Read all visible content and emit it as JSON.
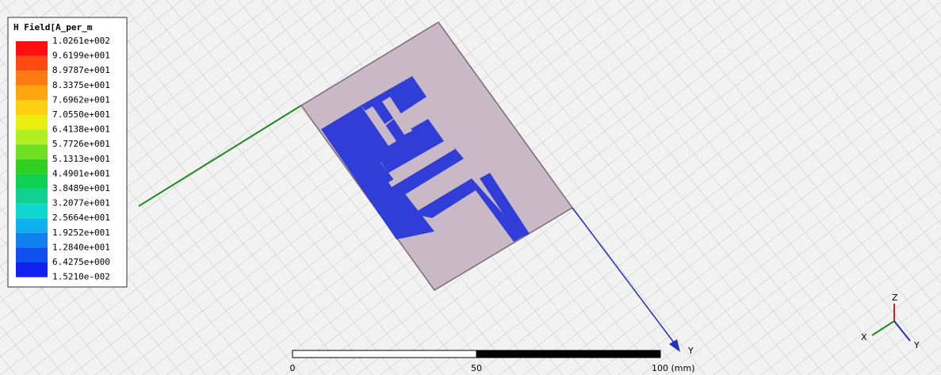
{
  "legend": {
    "title": "H Field[A_per_m",
    "labels": [
      "1.0261e+002",
      "9.6199e+001",
      "8.9787e+001",
      "8.3375e+001",
      "7.6962e+001",
      "7.0550e+001",
      "6.4138e+001",
      "5.7726e+001",
      "5.1313e+001",
      "4.4901e+001",
      "3.8489e+001",
      "3.2077e+001",
      "2.5664e+001",
      "1.9252e+001",
      "1.2840e+001",
      "6.4275e+000",
      "1.5210e-002"
    ]
  },
  "model_axis_label": "Y",
  "scale_bar": {
    "labels": [
      "0",
      "50",
      "100 (mm)"
    ]
  },
  "triad": {
    "z": "Z",
    "x": "X",
    "y": "Y"
  }
}
